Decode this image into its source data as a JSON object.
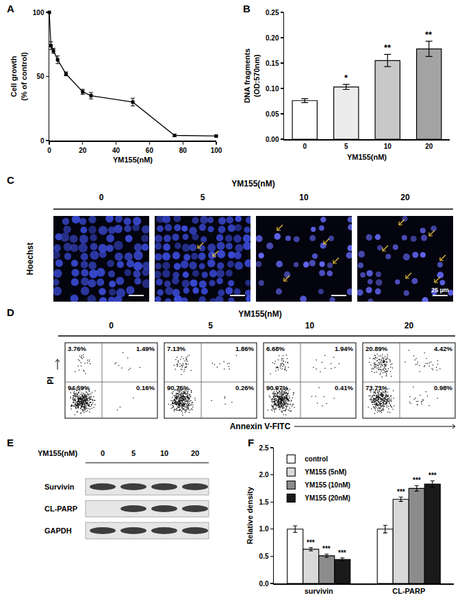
{
  "chart_data": [
    {
      "panel": "A",
      "type": "line",
      "x": [
        0,
        1,
        2.5,
        5,
        10,
        20,
        25,
        50,
        75,
        100
      ],
      "values": [
        100,
        74,
        70,
        63,
        52,
        38,
        35,
        30,
        4,
        3.5
      ],
      "errors": [
        0,
        3,
        2,
        3,
        1.5,
        2,
        2.5,
        3,
        1,
        0.8
      ],
      "color": "#000000",
      "marker": "square",
      "grid": false,
      "xlabel": "YM155(nM)",
      "ylabel": [
        "Cell growth",
        "(% of control)"
      ],
      "xlim": [
        0,
        100
      ],
      "xticks": [
        0,
        20,
        40,
        60,
        80,
        100
      ],
      "ylim": [
        0,
        100
      ],
      "yticks": [
        0,
        50,
        100
      ]
    },
    {
      "panel": "B",
      "type": "bar",
      "categories": [
        "0",
        "5",
        "10",
        "20"
      ],
      "values": [
        0.076,
        0.103,
        0.155,
        0.178
      ],
      "errors": [
        0.004,
        0.005,
        0.012,
        0.015
      ],
      "colors": [
        "#ffffff",
        "#ececec",
        "#c8c8c8",
        "#a3a3a3"
      ],
      "xlabel": "YM155(nM)",
      "ylabel": [
        "DNA fragments",
        "(OD:570nm)"
      ],
      "ylim": [
        0,
        0.25
      ],
      "yticks": [
        {
          "value": 0,
          "label": "0.00"
        },
        0.05,
        {
          "value": 0.1,
          "label": "0.10"
        },
        0.15,
        {
          "value": 0.2,
          "label": "0.20"
        },
        0.25
      ],
      "annotations": [
        {
          "category": "5",
          "text": "*"
        },
        {
          "category": "10",
          "text": "**"
        },
        {
          "category": "20",
          "text": "**"
        }
      ]
    },
    {
      "panel": "C",
      "type": "images",
      "header": "YM155(nM)",
      "lanes": [
        "0",
        "5",
        "10",
        "20"
      ],
      "stain": "Hoechst",
      "scale_label": "25 µm"
    },
    {
      "panel": "D",
      "type": "flow",
      "header": "YM155(nM)",
      "lanes": [
        "0",
        "5",
        "10",
        "20"
      ],
      "xlabel": "Annexin V-FITC",
      "ylabel": "PI",
      "quadrants": [
        {
          "values": [
            3.76,
            1.49,
            94.59,
            0.16
          ],
          "value_labels": [
            "3.76%",
            "1.49%",
            "94.59%",
            "0.16%"
          ]
        },
        {
          "values": [
            7.13,
            1.86,
            90.75,
            0.26
          ],
          "value_labels": [
            "7.13%",
            "1.86%",
            "90.75%",
            "0.26%"
          ]
        },
        {
          "values": [
            6.68,
            1.94,
            90.97,
            0.41
          ],
          "value_labels": [
            "6.68%",
            "1.94%",
            "90.97%",
            "0.41%"
          ]
        },
        {
          "values": [
            20.89,
            4.42,
            73.71,
            0.98
          ],
          "value_labels": [
            "20.89%",
            "4.42%",
            "73.71%",
            "0.98%"
          ]
        }
      ]
    },
    {
      "panel": "E",
      "type": "blot",
      "header": "YM155(nM)",
      "lanes": [
        "0",
        "5",
        "10",
        "20"
      ],
      "rows": [
        {
          "label": "Survivin",
          "bands": [
            true,
            true,
            true,
            true
          ]
        },
        {
          "label": "CL-PARP",
          "bands": [
            false,
            true,
            true,
            true
          ]
        },
        {
          "label": "GAPDH",
          "bands": [
            true,
            true,
            true,
            true
          ]
        }
      ]
    },
    {
      "panel": "F",
      "type": "bar",
      "categories": [
        "survivin",
        "CL-PARP"
      ],
      "series": [
        {
          "name": "control",
          "color": "#ffffff",
          "values": [
            1.0,
            1.0
          ],
          "errors": [
            0.06,
            0.07
          ]
        },
        {
          "name": "YM155 (5nM)",
          "color": "#d9d9d9",
          "values": [
            0.63,
            1.55
          ],
          "errors": [
            0.03,
            0.04
          ],
          "annotations": [
            "***",
            "***"
          ]
        },
        {
          "name": "YM155 (10nM)",
          "color": "#8c8c8c",
          "values": [
            0.51,
            1.75
          ],
          "errors": [
            0.03,
            0.05
          ],
          "annotations": [
            "***",
            "***"
          ]
        },
        {
          "name": "YM155 (20nM)",
          "color": "#1a1a1a",
          "values": [
            0.44,
            1.83
          ],
          "errors": [
            0.03,
            0.06
          ],
          "annotations": [
            "***",
            "***"
          ]
        }
      ],
      "ylabel": "Relative density",
      "legend": "top left",
      "ylim": [
        0,
        2.5
      ],
      "yticks": [
        {
          "value": 0,
          "label": "0.0"
        },
        0.5,
        {
          "value": 1,
          "label": "1.0"
        },
        1.5,
        {
          "value": 2,
          "label": "2.0"
        },
        2.5
      ]
    }
  ]
}
